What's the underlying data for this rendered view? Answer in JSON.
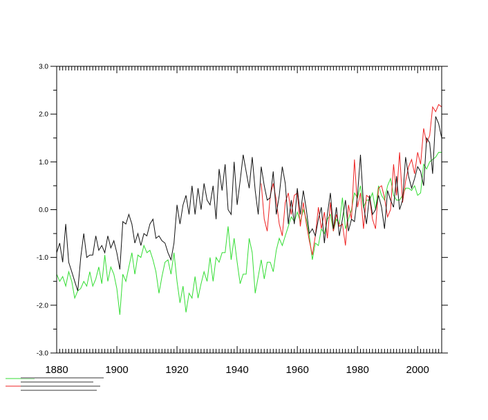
{
  "chart_data": {
    "type": "line",
    "title": "",
    "xlabel": "",
    "ylabel": "",
    "xlim": [
      1880,
      2008
    ],
    "ylim": [
      -3.0,
      3.0
    ],
    "y_ticks": [
      "-3.0",
      "-2.0",
      "-1.0",
      "0.0",
      "1.0",
      "2.0",
      "3.0"
    ],
    "x_ticks": [
      "1880",
      "1900",
      "1920",
      "1940",
      "1960",
      "1980",
      "2000"
    ],
    "grid": false,
    "legend_position": "bottom-left",
    "colors": {
      "black_series": "#111111",
      "red_series": "#ee2222",
      "green_series": "#33dd33"
    },
    "series": [
      {
        "color": "#111111",
        "x": [
          1880,
          1881,
          1882,
          1883,
          1884,
          1885,
          1886,
          1887,
          1888,
          1889,
          1890,
          1891,
          1892,
          1893,
          1894,
          1895,
          1896,
          1897,
          1898,
          1899,
          1900,
          1901,
          1902,
          1903,
          1904,
          1905,
          1906,
          1907,
          1908,
          1909,
          1910,
          1911,
          1912,
          1913,
          1914,
          1915,
          1916,
          1917,
          1918,
          1919,
          1920,
          1921,
          1922,
          1923,
          1924,
          1925,
          1926,
          1927,
          1928,
          1929,
          1930,
          1931,
          1932,
          1933,
          1934,
          1935,
          1936,
          1937,
          1938,
          1939,
          1940,
          1941,
          1942,
          1943,
          1944,
          1945,
          1946,
          1947,
          1948,
          1949,
          1950,
          1951,
          1952,
          1953,
          1954,
          1955,
          1956,
          1957,
          1958,
          1959,
          1960,
          1961,
          1962,
          1963,
          1964,
          1965,
          1966,
          1967,
          1968,
          1969,
          1970,
          1971,
          1972,
          1973,
          1974,
          1975,
          1976,
          1977,
          1978,
          1979,
          1980,
          1981,
          1982,
          1983,
          1984,
          1985,
          1986,
          1987,
          1988,
          1989,
          1990,
          1991,
          1992,
          1993,
          1994,
          1995,
          1996,
          1997,
          1998,
          1999,
          2000,
          2001,
          2002,
          2003,
          2004,
          2005,
          2006,
          2007,
          2008
        ],
        "y": [
          -0.9,
          -0.7,
          -1.1,
          -0.3,
          -1.1,
          -1.3,
          -1.5,
          -1.7,
          -1.0,
          -0.5,
          -1.0,
          -0.95,
          -0.95,
          -0.55,
          -0.85,
          -0.75,
          -0.9,
          -0.55,
          -0.8,
          -0.65,
          -0.9,
          -1.25,
          -0.25,
          -0.3,
          -0.1,
          -0.3,
          -0.7,
          -0.5,
          -0.75,
          -0.5,
          -0.55,
          -0.3,
          -0.2,
          -0.6,
          -0.55,
          -0.65,
          -0.7,
          -0.9,
          -1.05,
          -0.7,
          0.1,
          -0.3,
          0.1,
          0.3,
          -0.1,
          0.5,
          -0.1,
          0.45,
          0.0,
          0.55,
          0.2,
          0.1,
          0.5,
          -0.2,
          0.85,
          0.4,
          0.95,
          0.0,
          -0.1,
          1.0,
          0.1,
          0.6,
          1.15,
          0.8,
          0.45,
          1.1,
          0.4,
          -0.1,
          0.9,
          0.5,
          0.2,
          0.25,
          0.8,
          -0.1,
          0.3,
          0.9,
          0.55,
          -0.3,
          0.2,
          -0.3,
          0.45,
          -0.1,
          0.4,
          0.0,
          -0.5,
          -0.4,
          -0.55,
          -0.2,
          0.05,
          -0.7,
          -0.1,
          0.35,
          -0.4,
          0.05,
          -0.55,
          -0.2,
          0.2,
          -0.45,
          -0.2,
          -0.25,
          0.3,
          1.15,
          0.1,
          -0.3,
          0.3,
          -0.1,
          0.0,
          0.3,
          0.05,
          -0.4,
          0.4,
          0.2,
          0.05,
          0.7,
          0.0,
          0.2,
          1.1,
          0.7,
          0.45,
          0.65,
          0.9,
          0.8,
          0.5,
          1.5,
          1.4,
          0.75,
          1.95,
          1.8,
          1.5
        ]
      },
      {
        "color": "#ee2222",
        "x": [
          1948,
          1949,
          1950,
          1951,
          1952,
          1953,
          1954,
          1955,
          1956,
          1957,
          1958,
          1959,
          1960,
          1961,
          1962,
          1963,
          1964,
          1965,
          1966,
          1967,
          1968,
          1969,
          1970,
          1971,
          1972,
          1973,
          1974,
          1975,
          1976,
          1977,
          1978,
          1979,
          1980,
          1981,
          1982,
          1983,
          1984,
          1985,
          1986,
          1987,
          1988,
          1989,
          1990,
          1991,
          1992,
          1993,
          1994,
          1995,
          1996,
          1997,
          1998,
          1999,
          2000,
          2001,
          2002,
          2003,
          2004,
          2005,
          2006,
          2007,
          2008
        ],
        "y": [
          0.55,
          -0.2,
          -0.45,
          0.3,
          0.55,
          0.2,
          -0.3,
          -0.55,
          0.15,
          0.35,
          -0.1,
          0.3,
          0.35,
          -0.35,
          0.15,
          -0.3,
          -0.65,
          -0.95,
          -0.55,
          0.05,
          -0.4,
          -0.05,
          -0.6,
          0.15,
          -0.45,
          -0.1,
          -0.35,
          -0.3,
          -0.75,
          0.1,
          -0.2,
          1.05,
          0.05,
          0.35,
          -0.4,
          0.3,
          0.25,
          -0.2,
          -0.4,
          0.45,
          0.5,
          0.25,
          -0.15,
          0.0,
          0.95,
          0.3,
          1.2,
          0.15,
          0.6,
          0.9,
          1.05,
          0.75,
          1.2,
          0.95,
          1.7,
          1.4,
          1.55,
          2.15,
          2.05,
          2.2,
          2.15
        ]
      },
      {
        "color": "#33dd33",
        "x": [
          1880,
          1881,
          1882,
          1883,
          1884,
          1885,
          1886,
          1887,
          1888,
          1889,
          1890,
          1891,
          1892,
          1893,
          1894,
          1895,
          1896,
          1897,
          1898,
          1899,
          1900,
          1901,
          1902,
          1903,
          1904,
          1905,
          1906,
          1907,
          1908,
          1909,
          1910,
          1911,
          1912,
          1913,
          1914,
          1915,
          1916,
          1917,
          1918,
          1919,
          1920,
          1921,
          1922,
          1923,
          1924,
          1925,
          1926,
          1927,
          1928,
          1929,
          1930,
          1931,
          1932,
          1933,
          1934,
          1935,
          1936,
          1937,
          1938,
          1939,
          1940,
          1941,
          1942,
          1943,
          1944,
          1945,
          1946,
          1947,
          1948,
          1949,
          1950,
          1951,
          1952,
          1953,
          1954,
          1955,
          1956,
          1957,
          1958,
          1959,
          1960,
          1961,
          1962,
          1963,
          1964,
          1965,
          1966,
          1967,
          1968,
          1969,
          1970,
          1971,
          1972,
          1973,
          1974,
          1975,
          1976,
          1977,
          1978,
          1979,
          1980,
          1981,
          1982,
          1983,
          1984,
          1985,
          1986,
          1987,
          1988,
          1989,
          1990,
          1991,
          1992,
          1993,
          1994,
          1995,
          1996,
          1997,
          1998,
          1999,
          2000,
          2001,
          2002,
          2003,
          2004,
          2005,
          2006,
          2007,
          2008
        ],
        "y": [
          -1.35,
          -1.5,
          -1.4,
          -1.6,
          -1.3,
          -1.5,
          -1.85,
          -1.7,
          -1.65,
          -1.5,
          -1.6,
          -1.3,
          -1.6,
          -1.45,
          -1.2,
          -1.55,
          -0.95,
          -1.5,
          -1.2,
          -1.35,
          -1.65,
          -2.2,
          -1.35,
          -1.5,
          -1.2,
          -0.9,
          -1.35,
          -0.95,
          -1.0,
          -0.75,
          -0.9,
          -0.85,
          -1.05,
          -1.3,
          -1.75,
          -1.4,
          -1.1,
          -1.05,
          -1.35,
          -0.9,
          -1.5,
          -1.95,
          -1.6,
          -2.15,
          -1.75,
          -1.85,
          -1.4,
          -1.85,
          -1.55,
          -1.3,
          -1.5,
          -1.0,
          -1.5,
          -1.0,
          -1.1,
          -0.9,
          -0.9,
          -0.35,
          -1.05,
          -0.6,
          -1.1,
          -1.55,
          -1.35,
          -1.35,
          -0.6,
          -0.9,
          -1.75,
          -1.4,
          -1.05,
          -1.45,
          -1.1,
          -1.1,
          -1.3,
          -0.85,
          -0.6,
          -0.75,
          -0.55,
          -0.35,
          -0.15,
          -0.25,
          -0.05,
          -0.25,
          0.0,
          -0.2,
          -0.55,
          -1.05,
          -0.7,
          -0.75,
          -0.4,
          -0.5,
          -0.2,
          -0.1,
          -0.45,
          -0.2,
          -0.3,
          0.25,
          -0.4,
          -0.2,
          0.0,
          0.35,
          0.25,
          0.5,
          0.05,
          0.2,
          0.2,
          0.35,
          0.0,
          0.5,
          0.3,
          0.2,
          0.5,
          0.65,
          0.3,
          0.2,
          0.2,
          0.3,
          0.45,
          0.45,
          0.4,
          0.5,
          0.3,
          0.35,
          0.95,
          0.85,
          1.0,
          1.05,
          1.1,
          1.2,
          1.2
        ]
      }
    ]
  }
}
